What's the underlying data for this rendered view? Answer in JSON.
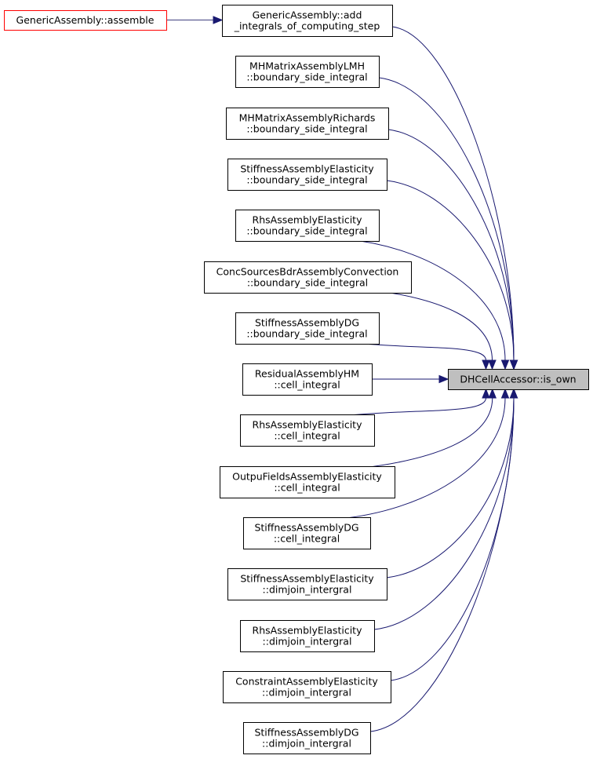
{
  "graph": {
    "colors": {
      "edge": "#191970",
      "node_border": "#000000",
      "root_border": "#ff0000",
      "target_fill": "#bfbfbf",
      "edge_light": "#404080"
    },
    "target": {
      "label": [
        "DHCellAccessor::is_own"
      ]
    },
    "root": {
      "label": [
        "GenericAssembly::assemble"
      ]
    },
    "callers": [
      {
        "label": [
          "GenericAssembly::add",
          "_integrals_of_computing_step"
        ]
      },
      {
        "label": [
          "MHMatrixAssemblyLMH",
          "::boundary_side_integral"
        ]
      },
      {
        "label": [
          "MHMatrixAssemblyRichards",
          "::boundary_side_integral"
        ]
      },
      {
        "label": [
          "StiffnessAssemblyElasticity",
          "::boundary_side_integral"
        ]
      },
      {
        "label": [
          "RhsAssemblyElasticity",
          "::boundary_side_integral"
        ]
      },
      {
        "label": [
          "ConcSourcesBdrAssemblyConvection",
          "::boundary_side_integral"
        ]
      },
      {
        "label": [
          "StiffnessAssemblyDG",
          "::boundary_side_integral"
        ]
      },
      {
        "label": [
          "ResidualAssemblyHM",
          "::cell_integral"
        ]
      },
      {
        "label": [
          "RhsAssemblyElasticity",
          "::cell_integral"
        ]
      },
      {
        "label": [
          "OutpuFieldsAssemblyElasticity",
          "::cell_integral"
        ]
      },
      {
        "label": [
          "StiffnessAssemblyDG",
          "::cell_integral"
        ]
      },
      {
        "label": [
          "StiffnessAssemblyElasticity",
          "::dimjoin_intergral"
        ]
      },
      {
        "label": [
          "RhsAssemblyElasticity",
          "::dimjoin_intergral"
        ]
      },
      {
        "label": [
          "ConstraintAssemblyElasticity",
          "::dimjoin_intergral"
        ]
      },
      {
        "label": [
          "StiffnessAssemblyDG",
          "::dimjoin_intergral"
        ]
      }
    ]
  }
}
